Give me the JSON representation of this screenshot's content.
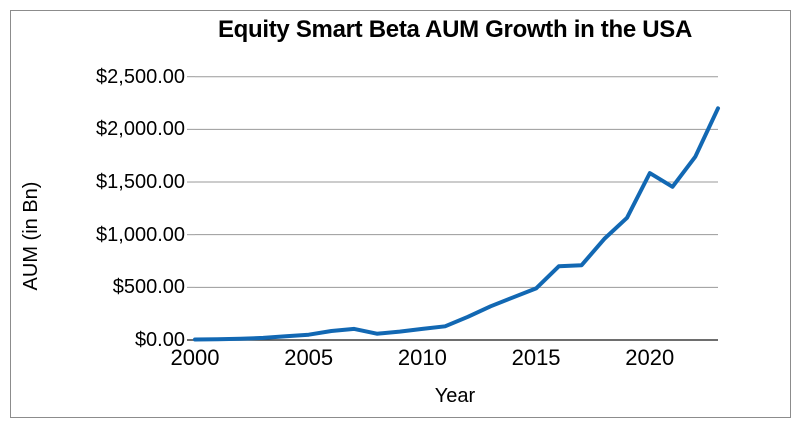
{
  "title": "Equity Smart Beta AUM Growth in the USA",
  "x_axis": {
    "label": "Year",
    "ticks": [
      "2000",
      "2005",
      "2010",
      "2015",
      "2020"
    ],
    "tick_years": [
      2000,
      2005,
      2010,
      2015,
      2020
    ]
  },
  "y_axis": {
    "label": "AUM (in Bn)",
    "ticks": [
      "$0.00",
      "$500.00",
      "$1,000.00",
      "$1,500.00",
      "$2,000.00",
      "$2,500.00"
    ],
    "tick_values": [
      0,
      500,
      1000,
      1500,
      2000,
      2500
    ]
  },
  "chart_data": {
    "type": "line",
    "title": "Equity Smart Beta AUM Growth in the USA",
    "xlabel": "Year",
    "ylabel": "AUM (in Bn)",
    "x": [
      2000,
      2001,
      2002,
      2003,
      2004,
      2005,
      2006,
      2007,
      2008,
      2009,
      2010,
      2011,
      2012,
      2013,
      2014,
      2015,
      2016,
      2017,
      2018,
      2019,
      2020,
      2021,
      2022,
      2023
    ],
    "values": [
      5,
      8,
      12,
      20,
      35,
      50,
      85,
      105,
      60,
      80,
      105,
      130,
      220,
      320,
      405,
      490,
      700,
      710,
      960,
      1160,
      1585,
      1455,
      1740,
      2200
    ],
    "xlim": [
      2000,
      2023
    ],
    "ylim": [
      0,
      2500
    ],
    "grid": "horizontal",
    "legend": "none",
    "y_tick_format": "$#,##0.00"
  },
  "colors": {
    "series_line": "#1268B3",
    "gridline": "#9a9a9a",
    "axis_line": "#3f3f3f",
    "text": "#000000",
    "frame_border": "#8c8c8c",
    "background": "#ffffff"
  }
}
